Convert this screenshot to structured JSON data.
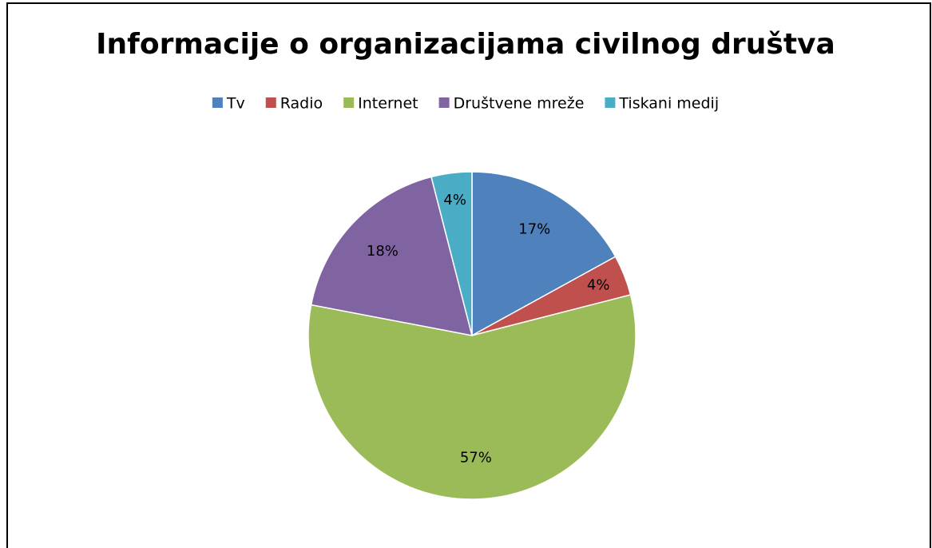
{
  "chart_data": {
    "type": "pie",
    "title": "Informacije o organizacijama civilnog društva",
    "categories": [
      "Tv",
      "Radio",
      "Internet",
      "Društvene mreže",
      "Tiskani medij"
    ],
    "values": [
      17,
      4,
      57,
      18,
      4
    ],
    "value_labels": [
      "17%",
      "4%",
      "57%",
      "18%",
      "4%"
    ],
    "colors": [
      "#4f81bd",
      "#c0504d",
      "#9bbb59",
      "#8064a2",
      "#4bacc6"
    ],
    "legend": "top"
  }
}
